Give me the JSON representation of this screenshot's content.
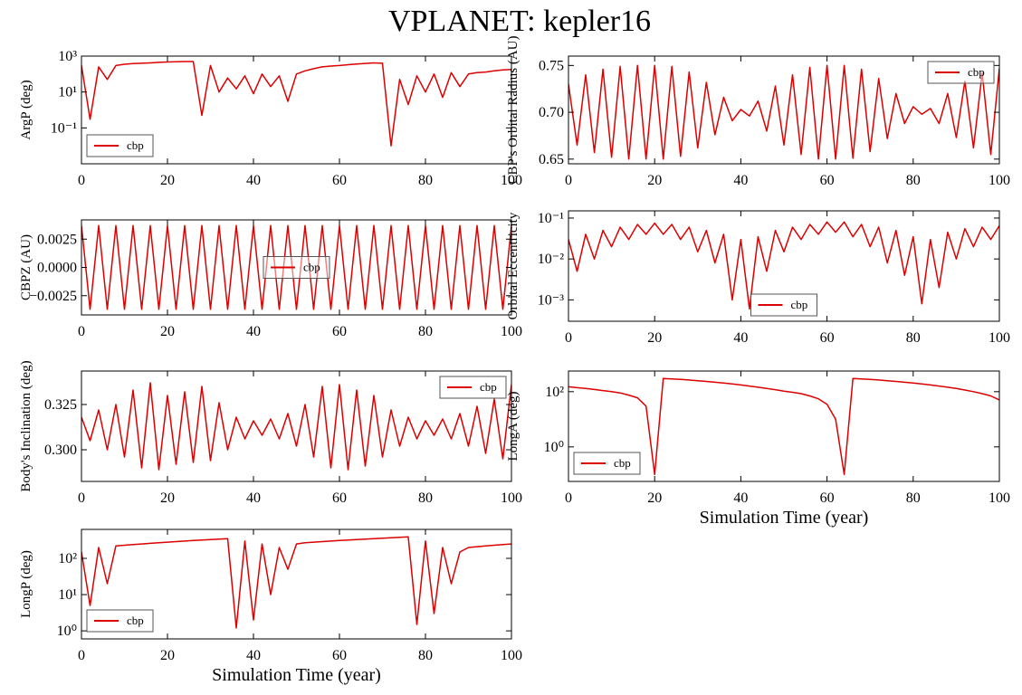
{
  "title": "VPLANET: kepler16",
  "chart_data": [
    {
      "type": "line",
      "ylabel": "ArgP (deg)",
      "log_y": true,
      "legend": "lower left",
      "xlim": [
        0,
        100
      ],
      "xticks": [
        0,
        20,
        40,
        60,
        80,
        100
      ],
      "ylim": [
        0.001,
        1000
      ],
      "yticks": [
        {
          "value": 0.1,
          "label": "10⁻¹"
        },
        {
          "value": 10,
          "label": "10¹"
        },
        {
          "value": 1000,
          "label": "10³"
        }
      ],
      "x": [
        0,
        2,
        4,
        6,
        8,
        10,
        12,
        14,
        16,
        18,
        20,
        22,
        24,
        26,
        28,
        30,
        32,
        34,
        36,
        38,
        40,
        42,
        44,
        46,
        48,
        50,
        52,
        54,
        56,
        58,
        60,
        62,
        64,
        66,
        68,
        70,
        72,
        74,
        76,
        78,
        80,
        82,
        84,
        86,
        88,
        90,
        92,
        94,
        96,
        98,
        100
      ],
      "series": [
        {
          "name": "cbp",
          "color": "#dd0000",
          "values": [
            300,
            0.3,
            250,
            50,
            300,
            350,
            380,
            400,
            420,
            450,
            470,
            480,
            500,
            500,
            0.5,
            300,
            10,
            60,
            15,
            80,
            8,
            100,
            20,
            80,
            3,
            100,
            150,
            200,
            250,
            280,
            300,
            330,
            360,
            390,
            420,
            400,
            0.01,
            50,
            2,
            80,
            10,
            100,
            5,
            120,
            20,
            100,
            120,
            130,
            150,
            170,
            180
          ]
        }
      ]
    },
    {
      "type": "line",
      "ylabel": "CBP's Orbital Radius (AU)",
      "log_y": false,
      "legend": "upper right",
      "xlim": [
        0,
        100
      ],
      "xticks": [
        0,
        20,
        40,
        60,
        80,
        100
      ],
      "ylim": [
        0.645,
        0.76
      ],
      "yticks": [
        {
          "value": 0.65,
          "label": "0.65"
        },
        {
          "value": 0.7,
          "label": "0.70"
        },
        0.75
      ],
      "x": [
        0,
        2,
        4,
        6,
        8,
        10,
        12,
        14,
        16,
        18,
        20,
        22,
        24,
        26,
        28,
        30,
        32,
        34,
        36,
        38,
        40,
        42,
        44,
        46,
        48,
        50,
        52,
        54,
        56,
        58,
        60,
        62,
        64,
        66,
        68,
        70,
        72,
        74,
        76,
        78,
        80,
        82,
        84,
        86,
        88,
        90,
        92,
        94,
        96,
        98,
        100
      ],
      "series": [
        {
          "name": "cbp",
          "color": "#dd0000",
          "values": [
            0.73,
            0.665,
            0.74,
            0.657,
            0.746,
            0.652,
            0.749,
            0.65,
            0.75,
            0.65,
            0.75,
            0.65,
            0.749,
            0.653,
            0.743,
            0.662,
            0.732,
            0.676,
            0.716,
            0.691,
            0.703,
            0.696,
            0.712,
            0.68,
            0.728,
            0.665,
            0.74,
            0.655,
            0.748,
            0.65,
            0.75,
            0.65,
            0.75,
            0.651,
            0.746,
            0.658,
            0.736,
            0.672,
            0.72,
            0.688,
            0.706,
            0.698,
            0.704,
            0.688,
            0.72,
            0.673,
            0.733,
            0.662,
            0.742,
            0.655,
            0.747
          ]
        }
      ]
    },
    {
      "type": "line",
      "ylabel": "CBPZ (AU)",
      "log_y": false,
      "legend": "center",
      "xlim": [
        0,
        100
      ],
      "xticks": [
        0,
        20,
        40,
        60,
        80,
        100
      ],
      "ylim": [
        -0.0042,
        0.0042
      ],
      "yticks": [
        {
          "value": -0.0025,
          "label": "−0.0025"
        },
        {
          "value": 0,
          "label": "0.0000"
        },
        0.0025
      ],
      "x": [
        0,
        2,
        4,
        6,
        8,
        10,
        12,
        14,
        16,
        18,
        20,
        22,
        24,
        26,
        28,
        30,
        32,
        34,
        36,
        38,
        40,
        42,
        44,
        46,
        48,
        50,
        52,
        54,
        56,
        58,
        60,
        62,
        64,
        66,
        68,
        70,
        72,
        74,
        76,
        78,
        80,
        82,
        84,
        86,
        88,
        90,
        92,
        94,
        96,
        98,
        100
      ],
      "series": [
        {
          "name": "cbp",
          "color": "#dd0000",
          "values": [
            0.0037,
            -0.0037,
            0.0037,
            -0.0037,
            0.0037,
            -0.0037,
            0.0037,
            -0.0037,
            0.0037,
            -0.0037,
            0.0037,
            -0.0037,
            0.0037,
            -0.0037,
            0.0037,
            -0.0037,
            0.0037,
            -0.0037,
            0.0037,
            -0.0037,
            0.0037,
            -0.0037,
            0.0037,
            -0.0037,
            0.0037,
            -0.0037,
            0.0037,
            -0.0037,
            0.0037,
            -0.0037,
            0.0037,
            -0.0037,
            0.0037,
            -0.0037,
            0.0037,
            -0.0037,
            0.0037,
            -0.0037,
            0.0037,
            -0.0037,
            0.0037,
            -0.0037,
            0.0037,
            -0.0037,
            0.0037,
            -0.0037,
            0.0037,
            -0.0037,
            0.0037,
            -0.0037,
            0.0037
          ]
        }
      ]
    },
    {
      "type": "line",
      "ylabel": "Orbital Eccentricity",
      "log_y": true,
      "legend": "lower center",
      "xlim": [
        0,
        100
      ],
      "xticks": [
        0,
        20,
        40,
        60,
        80,
        100
      ],
      "ylim": [
        0.0003,
        0.15
      ],
      "yticks": [
        {
          "value": 0.001,
          "label": "10⁻³"
        },
        {
          "value": 0.01,
          "label": "10⁻²"
        },
        {
          "value": 0.1,
          "label": "10⁻¹"
        }
      ],
      "x": [
        0,
        2,
        4,
        6,
        8,
        10,
        12,
        14,
        16,
        18,
        20,
        22,
        24,
        26,
        28,
        30,
        32,
        34,
        36,
        38,
        40,
        42,
        44,
        46,
        48,
        50,
        52,
        54,
        56,
        58,
        60,
        62,
        64,
        66,
        68,
        70,
        72,
        74,
        76,
        78,
        80,
        82,
        84,
        86,
        88,
        90,
        92,
        94,
        96,
        98,
        100
      ],
      "series": [
        {
          "name": "cbp",
          "color": "#dd0000",
          "values": [
            0.03,
            0.005,
            0.04,
            0.01,
            0.05,
            0.02,
            0.06,
            0.03,
            0.07,
            0.04,
            0.075,
            0.04,
            0.07,
            0.03,
            0.06,
            0.015,
            0.05,
            0.008,
            0.04,
            0.001,
            0.03,
            0.0006,
            0.035,
            0.005,
            0.05,
            0.015,
            0.06,
            0.03,
            0.07,
            0.04,
            0.08,
            0.045,
            0.08,
            0.035,
            0.07,
            0.02,
            0.06,
            0.008,
            0.05,
            0.004,
            0.035,
            0.0008,
            0.03,
            0.002,
            0.045,
            0.01,
            0.055,
            0.02,
            0.06,
            0.03,
            0.065
          ]
        }
      ]
    },
    {
      "type": "line",
      "ylabel": "Body's Inclination (deg)",
      "log_y": false,
      "legend": "upper right",
      "xlim": [
        0,
        100
      ],
      "xticks": [
        0,
        20,
        40,
        60,
        80,
        100
      ],
      "ylim": [
        0.2825,
        0.3435
      ],
      "yticks": [
        {
          "value": 0.3,
          "label": "0.300"
        },
        0.325
      ],
      "x": [
        0,
        2,
        4,
        6,
        8,
        10,
        12,
        14,
        16,
        18,
        20,
        22,
        24,
        26,
        28,
        30,
        32,
        34,
        36,
        38,
        40,
        42,
        44,
        46,
        48,
        50,
        52,
        54,
        56,
        58,
        60,
        62,
        64,
        66,
        68,
        70,
        72,
        74,
        76,
        78,
        80,
        82,
        84,
        86,
        88,
        90,
        92,
        94,
        96,
        98,
        100
      ],
      "series": [
        {
          "name": "cbp",
          "color": "#dd0000",
          "values": [
            0.318,
            0.305,
            0.322,
            0.3,
            0.325,
            0.296,
            0.333,
            0.29,
            0.337,
            0.289,
            0.33,
            0.292,
            0.332,
            0.293,
            0.335,
            0.294,
            0.326,
            0.3,
            0.318,
            0.306,
            0.316,
            0.308,
            0.317,
            0.306,
            0.32,
            0.302,
            0.325,
            0.296,
            0.335,
            0.29,
            0.336,
            0.289,
            0.333,
            0.291,
            0.33,
            0.296,
            0.322,
            0.302,
            0.318,
            0.306,
            0.316,
            0.308,
            0.317,
            0.306,
            0.32,
            0.302,
            0.324,
            0.298,
            0.328,
            0.295,
            0.336
          ]
        }
      ]
    },
    {
      "type": "line",
      "ylabel": "LongA (deg)",
      "xlabel": "Simulation Time (year)",
      "log_y": true,
      "legend": "lower left",
      "xlim": [
        0,
        100
      ],
      "xticks": [
        0,
        20,
        40,
        60,
        80,
        100
      ],
      "ylim": [
        0.056,
        560
      ],
      "yticks": [
        {
          "value": 1,
          "label": "10⁰"
        },
        {
          "value": 100,
          "label": "10²"
        }
      ],
      "x": [
        0,
        2,
        4,
        6,
        8,
        10,
        12,
        14,
        16,
        18,
        20,
        22,
        24,
        26,
        28,
        30,
        32,
        34,
        36,
        38,
        40,
        42,
        44,
        46,
        48,
        50,
        52,
        54,
        56,
        58,
        60,
        62,
        64,
        66,
        68,
        70,
        72,
        74,
        76,
        78,
        80,
        82,
        84,
        86,
        88,
        90,
        92,
        94,
        96,
        98,
        100
      ],
      "series": [
        {
          "name": "cbp",
          "color": "#dd0000",
          "values": [
            150,
            140,
            130,
            120,
            110,
            100,
            90,
            75,
            60,
            30,
            0.1,
            300,
            290,
            280,
            265,
            250,
            235,
            220,
            205,
            190,
            175,
            160,
            145,
            130,
            118,
            105,
            95,
            85,
            70,
            55,
            35,
            10,
            0.1,
            300,
            290,
            280,
            265,
            250,
            235,
            220,
            205,
            190,
            175,
            160,
            145,
            130,
            115,
            100,
            85,
            70,
            50
          ]
        }
      ]
    },
    {
      "type": "line",
      "ylabel": "LongP (deg)",
      "xlabel": "Simulation Time (year)",
      "log_y": true,
      "legend": "lower left",
      "xlim": [
        0,
        100
      ],
      "xticks": [
        0,
        20,
        40,
        60,
        80,
        100
      ],
      "ylim": [
        0.6,
        630
      ],
      "yticks": [
        {
          "value": 1,
          "label": "10⁰"
        },
        {
          "value": 10,
          "label": "10¹"
        },
        {
          "value": 100,
          "label": "10²"
        }
      ],
      "x": [
        0,
        2,
        4,
        6,
        8,
        10,
        12,
        14,
        16,
        18,
        20,
        22,
        24,
        26,
        28,
        30,
        32,
        34,
        36,
        38,
        40,
        42,
        44,
        46,
        48,
        50,
        52,
        54,
        56,
        58,
        60,
        62,
        64,
        66,
        68,
        70,
        72,
        74,
        76,
        78,
        80,
        82,
        84,
        86,
        88,
        90,
        92,
        94,
        96,
        98,
        100
      ],
      "series": [
        {
          "name": "cbp",
          "color": "#dd0000",
          "values": [
            150,
            5,
            200,
            20,
            220,
            230,
            240,
            250,
            260,
            270,
            280,
            290,
            300,
            310,
            320,
            330,
            340,
            350,
            1.2,
            300,
            2,
            250,
            10,
            200,
            50,
            250,
            270,
            280,
            290,
            300,
            310,
            320,
            330,
            340,
            350,
            360,
            370,
            380,
            390,
            1.5,
            300,
            3,
            200,
            20,
            150,
            200,
            210,
            220,
            230,
            240,
            250
          ]
        }
      ]
    }
  ]
}
